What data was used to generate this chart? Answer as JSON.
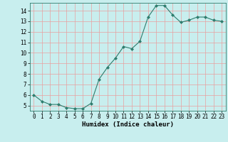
{
  "x": [
    0,
    1,
    2,
    3,
    4,
    5,
    6,
    7,
    8,
    9,
    10,
    11,
    12,
    13,
    14,
    15,
    16,
    17,
    18,
    19,
    20,
    21,
    22,
    23
  ],
  "y": [
    6.0,
    5.4,
    5.1,
    5.1,
    4.8,
    4.7,
    4.7,
    5.2,
    7.5,
    8.6,
    9.5,
    10.6,
    10.4,
    11.1,
    13.4,
    14.5,
    14.5,
    13.6,
    12.9,
    13.1,
    13.4,
    13.4,
    13.1,
    13.0
  ],
  "line_color": "#2e7d6e",
  "marker": "D",
  "marker_size": 2.0,
  "bg_color": "#c8eeee",
  "grid_color": "#e8a0a0",
  "xlabel": "Humidex (Indice chaleur)",
  "ylabel": "",
  "xlim": [
    -0.5,
    23.5
  ],
  "ylim": [
    4.5,
    14.75
  ],
  "yticks": [
    5,
    6,
    7,
    8,
    9,
    10,
    11,
    12,
    13,
    14
  ],
  "xticks": [
    0,
    1,
    2,
    3,
    4,
    5,
    6,
    7,
    8,
    9,
    10,
    11,
    12,
    13,
    14,
    15,
    16,
    17,
    18,
    19,
    20,
    21,
    22,
    23
  ],
  "xlabel_fontsize": 6.5,
  "tick_fontsize": 5.5,
  "line_width": 0.8
}
